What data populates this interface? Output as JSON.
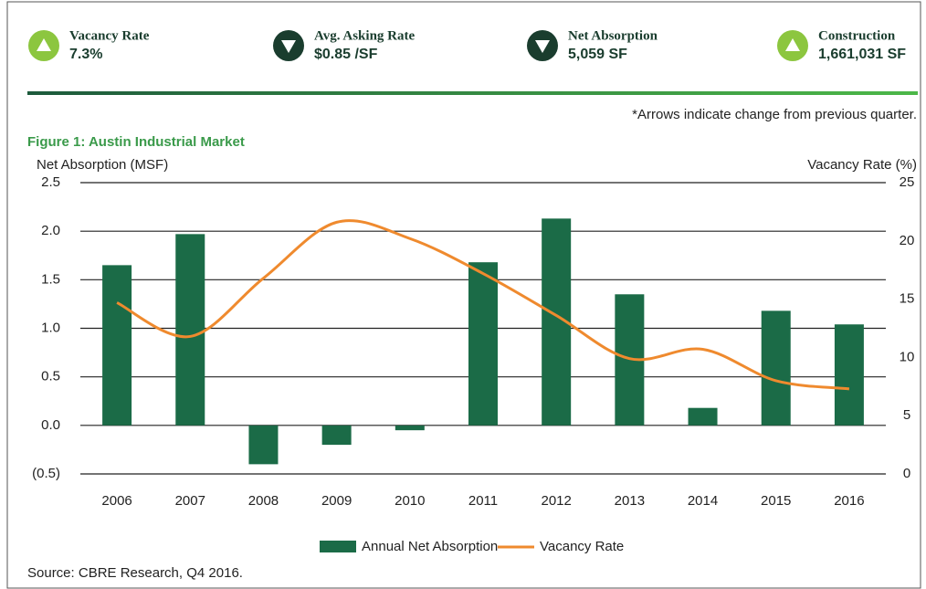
{
  "header": {
    "kpis": [
      {
        "label": "Vacancy Rate",
        "value": "7.3%",
        "direction": "up"
      },
      {
        "label": "Avg. Asking Rate",
        "value": "$0.85 /SF",
        "direction": "down"
      },
      {
        "label": "Net Absorption",
        "value": "5,059 SF",
        "direction": "down"
      },
      {
        "label": "Construction",
        "value": "1,661,031 SF",
        "direction": "up"
      }
    ],
    "note": "*Arrows indicate change from previous quarter."
  },
  "chart_data": {
    "type": "bar_line",
    "title": "Figure 1: Austin Industrial Market",
    "ylabel": "Net Absorption (MSF)",
    "y2label": "Vacancy Rate (%)",
    "categories": [
      "2006",
      "2007",
      "2008",
      "2009",
      "2010",
      "2011",
      "2012",
      "2013",
      "2014",
      "2015",
      "2016"
    ],
    "series": [
      {
        "name": "Annual Net Absorption",
        "type": "bar",
        "color": "#1b6b47",
        "axis": "y",
        "values": [
          1.65,
          1.97,
          -0.4,
          -0.2,
          -0.05,
          1.68,
          2.13,
          1.35,
          0.18,
          1.18,
          1.04
        ]
      },
      {
        "name": "Vacancy Rate",
        "type": "line",
        "color": "#ef8a2e",
        "axis": "y2",
        "values": [
          14.7,
          11.8,
          16.8,
          21.6,
          20.2,
          17.2,
          13.6,
          9.9,
          10.7,
          8.0,
          7.3
        ]
      }
    ],
    "ylim": [
      -0.5,
      2.5
    ],
    "yticks": [
      {
        "value": -0.5,
        "label": "(0.5)"
      },
      {
        "value": 0,
        "label": "0.0"
      },
      0.5,
      {
        "value": 1,
        "label": "1.0"
      },
      1.5,
      {
        "value": 2,
        "label": "2.0"
      },
      2.5
    ],
    "y2lim": [
      0,
      25
    ],
    "y2ticks": [
      0,
      5,
      10,
      15,
      20,
      25
    ],
    "grid": true,
    "legend": "bottom"
  },
  "source": "Source: CBRE Research, Q4 2016."
}
